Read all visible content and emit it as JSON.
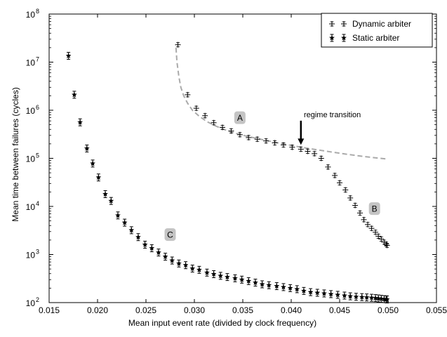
{
  "chart_data": {
    "type": "scatter",
    "xlabel": "Mean input event rate (divided by clock frequency)",
    "ylabel": "Mean time between failures (cycles)",
    "xlim": [
      0.015,
      0.055
    ],
    "ylim": [
      100,
      100000000
    ],
    "yscale": "log",
    "x_ticks": [
      "0.015",
      "0.020",
      "0.025",
      "0.030",
      "0.035",
      "0.040",
      "0.045",
      "0.050",
      "0.055"
    ],
    "x_tick_values": [
      0.015,
      0.02,
      0.025,
      0.03,
      0.035,
      0.04,
      0.045,
      0.05,
      0.055
    ],
    "y_ticks": [
      {
        "base": "10",
        "exp": "2",
        "value": 100
      },
      {
        "base": "10",
        "exp": "3",
        "value": 1000
      },
      {
        "base": "10",
        "exp": "4",
        "value": 10000
      },
      {
        "base": "10",
        "exp": "5",
        "value": 100000
      },
      {
        "base": "10",
        "exp": "6",
        "value": 1000000
      },
      {
        "base": "10",
        "exp": "7",
        "value": 10000000
      },
      {
        "base": "10",
        "exp": "8",
        "value": 100000000
      }
    ],
    "legend": {
      "placement": "top-right",
      "colors": {
        "marker": "#000000",
        "fit": "#aaaaaa"
      }
    },
    "series": [
      {
        "name": "Dynamic arbiter",
        "marker": "plus",
        "x": [
          0.0283,
          0.0293,
          0.0302,
          0.0311,
          0.032,
          0.0329,
          0.0338,
          0.0347,
          0.0356,
          0.0365,
          0.0374,
          0.0383,
          0.0392,
          0.0401,
          0.041,
          0.0417,
          0.0424,
          0.0431,
          0.0438,
          0.0445,
          0.045,
          0.0456,
          0.0461,
          0.0466,
          0.0471,
          0.0475,
          0.0479,
          0.0483,
          0.0487,
          0.049,
          0.0493,
          0.0496,
          0.0498,
          0.0499
        ],
        "y": [
          23000000,
          2100000,
          1100000,
          770000,
          550000,
          440000,
          370000,
          310000,
          270000,
          250000,
          230000,
          210000,
          190000,
          170000,
          155000,
          140000,
          125000,
          100000,
          66000,
          44000,
          31000,
          22000,
          15000,
          10500,
          7300,
          5300,
          4200,
          3500,
          2900,
          2400,
          2100,
          1800,
          1650,
          1550
        ]
      },
      {
        "name": "Static arbiter",
        "marker": "star",
        "x": [
          0.017,
          0.0176,
          0.0182,
          0.0189,
          0.0195,
          0.0201,
          0.0208,
          0.0214,
          0.0221,
          0.0228,
          0.0235,
          0.0242,
          0.0249,
          0.0256,
          0.0263,
          0.027,
          0.0277,
          0.0284,
          0.0291,
          0.0298,
          0.0305,
          0.0313,
          0.032,
          0.0327,
          0.0334,
          0.0342,
          0.0349,
          0.0356,
          0.0363,
          0.037,
          0.0377,
          0.0385,
          0.0392,
          0.0399,
          0.0406,
          0.0413,
          0.042,
          0.0427,
          0.0434,
          0.0441,
          0.0448,
          0.0455,
          0.0461,
          0.0467,
          0.0473,
          0.0478,
          0.0483,
          0.0487,
          0.049,
          0.0493,
          0.0496,
          0.0498,
          0.0499
        ],
        "y": [
          13500000,
          2100000,
          560000,
          160000,
          78000,
          40000,
          18000,
          13000,
          6500,
          4600,
          3200,
          2300,
          1600,
          1350,
          1100,
          900,
          750,
          650,
          600,
          510,
          480,
          420,
          390,
          360,
          340,
          320,
          300,
          280,
          260,
          240,
          230,
          220,
          210,
          200,
          190,
          175,
          165,
          160,
          155,
          150,
          145,
          140,
          135,
          132,
          130,
          128,
          126,
          124,
          122,
          120,
          118,
          117,
          116
        ]
      }
    ],
    "fit_curve": {
      "x": [
        0.0281,
        0.0282,
        0.0284,
        0.0286,
        0.0289,
        0.0293,
        0.0298,
        0.0305,
        0.0313,
        0.0322,
        0.0332,
        0.0343,
        0.0355,
        0.0368,
        0.0382,
        0.0397,
        0.0412,
        0.0427,
        0.0442,
        0.0457,
        0.0472,
        0.0486,
        0.05
      ],
      "y": [
        20000000,
        10000000,
        5000000,
        3000000,
        2000000,
        1400000,
        1000000,
        750000,
        580000,
        470000,
        390000,
        330000,
        285000,
        250000,
        218000,
        190000,
        168000,
        150000,
        135000,
        122000,
        111000,
        103000,
        96000
      ]
    },
    "annotations": [
      {
        "text": "A",
        "x": 0.0347,
        "y": 700000
      },
      {
        "text": "B",
        "x": 0.0486,
        "y": 9000
      },
      {
        "text": "C",
        "x": 0.0275,
        "y": 2600
      }
    ],
    "arrow_annotation": {
      "text": "regime transition",
      "x": 0.041,
      "y": 190000,
      "text_x": 0.0413,
      "text_y": 820000
    }
  }
}
